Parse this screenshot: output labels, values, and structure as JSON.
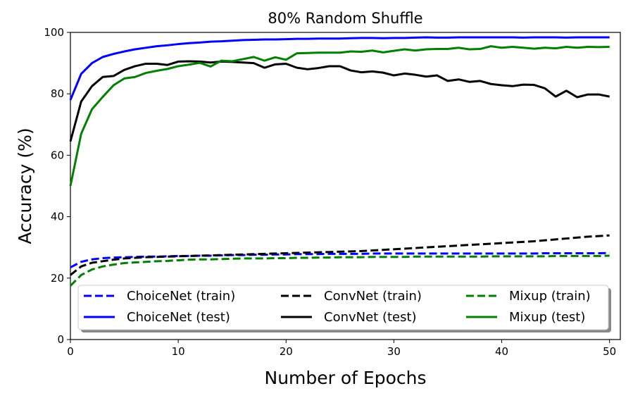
{
  "chart_data": {
    "type": "line",
    "title": "80% Random Shuffle",
    "xlabel": "Number of Epochs",
    "ylabel": "Accuracy (%)",
    "xlim": [
      0,
      51
    ],
    "ylim": [
      0,
      100
    ],
    "xticks": [
      0,
      10,
      20,
      30,
      40,
      50
    ],
    "yticks": [
      0,
      20,
      40,
      60,
      80,
      100
    ],
    "grid": false,
    "legend_position": "lower-center",
    "legend_columns": 3,
    "x": [
      0,
      1,
      2,
      3,
      4,
      5,
      6,
      7,
      8,
      9,
      10,
      11,
      12,
      13,
      14,
      15,
      16,
      17,
      18,
      19,
      20,
      21,
      22,
      23,
      24,
      25,
      26,
      27,
      28,
      29,
      30,
      31,
      32,
      33,
      34,
      35,
      36,
      37,
      38,
      39,
      40,
      41,
      42,
      43,
      44,
      45,
      46,
      47,
      48,
      49,
      50
    ],
    "series": [
      {
        "name": "ChoiceNet (train)",
        "color": "#0000ff",
        "dash": true,
        "values": [
          23.5,
          25.3,
          26.1,
          26.5,
          26.7,
          26.8,
          26.9,
          27.0,
          27.0,
          27.1,
          27.2,
          27.2,
          27.3,
          27.3,
          27.4,
          27.5,
          27.5,
          27.6,
          27.6,
          27.7,
          27.7,
          27.8,
          27.8,
          27.8,
          27.9,
          27.9,
          27.9,
          27.9,
          28.0,
          28.0,
          28.0,
          28.0,
          28.0,
          28.0,
          28.0,
          28.0,
          28.0,
          28.0,
          28.0,
          28.0,
          28.0,
          28.0,
          28.0,
          28.0,
          28.1,
          28.1,
          28.1,
          28.1,
          28.1,
          28.1,
          28.2
        ]
      },
      {
        "name": "ChoiceNet (test)",
        "color": "#0000ff",
        "dash": false,
        "values": [
          78.0,
          86.5,
          90.0,
          92.0,
          93.0,
          93.8,
          94.5,
          95.0,
          95.5,
          95.8,
          96.2,
          96.5,
          96.7,
          97.0,
          97.1,
          97.3,
          97.5,
          97.6,
          97.7,
          97.7,
          97.8,
          97.9,
          97.9,
          98.0,
          98.0,
          98.0,
          98.1,
          98.2,
          98.2,
          98.1,
          98.2,
          98.2,
          98.3,
          98.4,
          98.3,
          98.3,
          98.4,
          98.4,
          98.4,
          98.4,
          98.4,
          98.4,
          98.3,
          98.4,
          98.4,
          98.4,
          98.3,
          98.4,
          98.4,
          98.4,
          98.4
        ]
      },
      {
        "name": "ConvNet (train)",
        "color": "#000000",
        "dash": true,
        "values": [
          21.0,
          23.8,
          25.0,
          25.5,
          26.0,
          26.4,
          26.6,
          26.8,
          26.9,
          27.0,
          27.1,
          27.2,
          27.3,
          27.4,
          27.5,
          27.6,
          27.7,
          27.8,
          27.9,
          28.0,
          28.1,
          28.2,
          28.3,
          28.4,
          28.5,
          28.6,
          28.7,
          28.8,
          29.0,
          29.2,
          29.4,
          29.6,
          29.8,
          30.0,
          30.2,
          30.4,
          30.6,
          30.8,
          31.0,
          31.2,
          31.4,
          31.6,
          31.8,
          32.0,
          32.3,
          32.6,
          32.9,
          33.2,
          33.5,
          33.7,
          33.9
        ]
      },
      {
        "name": "ConvNet (test)",
        "color": "#000000",
        "dash": false,
        "values": [
          64.5,
          77.5,
          82.5,
          85.5,
          85.8,
          87.8,
          89.0,
          89.8,
          89.8,
          89.4,
          90.5,
          90.6,
          90.5,
          90.2,
          90.5,
          90.4,
          90.2,
          90.0,
          88.5,
          89.6,
          89.8,
          88.5,
          88.0,
          88.4,
          89.0,
          89.0,
          87.6,
          87.0,
          87.3,
          86.9,
          86.0,
          86.6,
          86.2,
          85.6,
          86.0,
          84.2,
          84.7,
          83.9,
          84.2,
          83.2,
          82.8,
          82.5,
          83.0,
          82.9,
          81.8,
          79.1,
          81.0,
          78.9,
          79.8,
          79.8,
          79.1
        ]
      },
      {
        "name": "Mixup (train)",
        "color": "#008000",
        "dash": true,
        "values": [
          17.5,
          21.0,
          22.8,
          23.8,
          24.4,
          24.9,
          25.1,
          25.3,
          25.5,
          25.6,
          25.8,
          26.0,
          26.1,
          26.1,
          26.2,
          26.3,
          26.4,
          26.4,
          26.4,
          26.5,
          26.5,
          26.6,
          26.6,
          26.7,
          26.7,
          26.8,
          26.8,
          26.8,
          26.9,
          26.9,
          26.9,
          26.9,
          27.0,
          27.0,
          27.0,
          27.0,
          27.0,
          27.0,
          27.0,
          27.1,
          27.1,
          27.1,
          27.1,
          27.1,
          27.1,
          27.2,
          27.2,
          27.2,
          27.2,
          27.2,
          27.3
        ]
      },
      {
        "name": "Mixup (test)",
        "color": "#008000",
        "dash": false,
        "values": [
          50.0,
          67.0,
          75.0,
          79.0,
          82.8,
          85.0,
          85.5,
          86.8,
          87.5,
          88.1,
          89.0,
          89.5,
          90.1,
          88.9,
          90.8,
          90.6,
          91.3,
          92.0,
          90.8,
          91.9,
          91.1,
          93.2,
          93.3,
          93.4,
          93.4,
          93.4,
          93.8,
          93.7,
          94.1,
          93.5,
          94.0,
          94.5,
          94.1,
          94.5,
          94.6,
          94.6,
          95.0,
          94.5,
          94.6,
          95.5,
          95.0,
          95.3,
          95.0,
          94.7,
          95.0,
          94.8,
          95.3,
          95.0,
          95.3,
          95.2,
          95.3
        ]
      }
    ]
  }
}
